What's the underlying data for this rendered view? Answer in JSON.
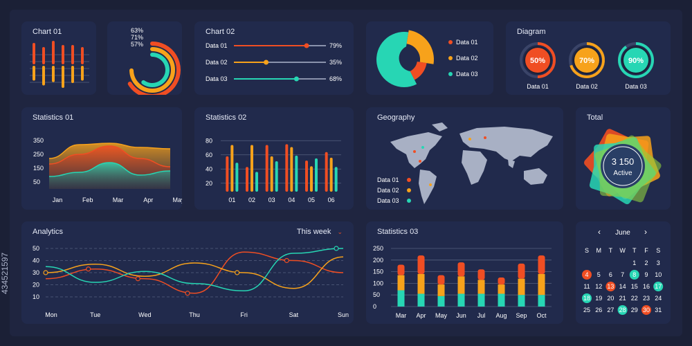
{
  "colors": {
    "red": "#f04e23",
    "orange": "#f7a21b",
    "teal": "#27d6b4",
    "grid": "#56607f",
    "text": "#c9cfe2",
    "white": "#ffffff"
  },
  "stock": {
    "side_text": "434521597"
  },
  "chart01": {
    "title": "Chart 01",
    "chart_data": {
      "type": "bar",
      "title": "Chart 01",
      "series": [
        {
          "name": "",
          "up": [
            45,
            35,
            50,
            40,
            40,
            35
          ],
          "down": [
            25,
            35,
            28,
            40,
            30,
            25
          ]
        }
      ]
    }
  },
  "rings": {
    "chart_data": {
      "type": "pie",
      "series": [
        {
          "label": "63%",
          "value": 63
        },
        {
          "label": "71%",
          "value": 71
        },
        {
          "label": "57%",
          "value": 57
        }
      ]
    }
  },
  "chart02": {
    "title": "Chart 02",
    "items": [
      {
        "label": "Data 01",
        "value": 79,
        "value_label": "79%"
      },
      {
        "label": "Data 02",
        "value": 35,
        "value_label": "35%"
      },
      {
        "label": "Data 03",
        "value": 68,
        "value_label": "68%"
      }
    ]
  },
  "donut": {
    "legend": [
      "Data 01",
      "Data 02",
      "Data 03"
    ],
    "chart_data": {
      "type": "pie",
      "categories": [
        "Data 01",
        "Data 02",
        "Data 03"
      ],
      "values": [
        30,
        20,
        50
      ]
    }
  },
  "diagram": {
    "title": "Diagram",
    "items": [
      {
        "value": 50,
        "label": "50%",
        "name": "Data 01"
      },
      {
        "value": 70,
        "label": "70%",
        "name": "Data 02"
      },
      {
        "value": 90,
        "label": "90%",
        "name": "Data 03"
      }
    ]
  },
  "stat01": {
    "title": "Statistics 01",
    "chart_data": {
      "type": "area",
      "categories": [
        "Jan",
        "Feb",
        "Mar",
        "Apr",
        "May"
      ],
      "yticks": [
        "350",
        "250",
        "150",
        "50"
      ],
      "ylim": [
        0,
        400
      ],
      "series": [
        {
          "name": "",
          "values": [
            220,
            320,
            330,
            300,
            290
          ]
        },
        {
          "name": "",
          "values": [
            180,
            250,
            310,
            220,
            160
          ]
        },
        {
          "name": "",
          "values": [
            90,
            120,
            190,
            100,
            130
          ]
        }
      ]
    }
  },
  "stat02": {
    "title": "Statistics 02",
    "chart_data": {
      "type": "bar",
      "categories": [
        "01",
        "02",
        "03",
        "04",
        "05",
        "06"
      ],
      "yticks": [
        "80",
        "60",
        "40",
        "20"
      ],
      "ylim": [
        10,
        90
      ],
      "series": [
        {
          "name": "",
          "values": [
            56,
            41,
            72,
            73,
            50,
            62
          ]
        },
        {
          "name": "",
          "values": [
            72,
            72,
            56,
            69,
            42,
            54
          ]
        },
        {
          "name": "",
          "values": [
            47,
            34,
            49,
            57,
            53,
            41
          ]
        }
      ]
    }
  },
  "geo": {
    "title": "Geography",
    "legend": [
      "Data 01",
      "Data 02",
      "Data 03"
    ]
  },
  "total": {
    "title": "Total",
    "value": "3 150",
    "label": "Active"
  },
  "analytics": {
    "title": "Analytics",
    "filter": "This week",
    "chart_data": {
      "type": "line",
      "categories": [
        "Mon",
        "Tue",
        "Wed",
        "Thu",
        "Fri",
        "Sat",
        "Sun"
      ],
      "yticks": [
        "50",
        "40",
        "30",
        "20",
        "10"
      ],
      "ylim": [
        10,
        50
      ],
      "series": [
        {
          "name": "",
          "values": [
            25,
            33,
            25,
            13,
            47,
            40,
            30
          ]
        },
        {
          "name": "",
          "values": [
            30,
            37,
            27,
            38,
            30,
            17,
            43
          ]
        },
        {
          "name": "",
          "values": [
            35,
            22,
            31,
            21,
            15,
            46,
            50
          ]
        }
      ]
    }
  },
  "stat03": {
    "title": "Statistics 03",
    "chart_data": {
      "type": "bar",
      "categories": [
        "Mar",
        "Apr",
        "May",
        "Jun",
        "Jul",
        "Aug",
        "Sep",
        "Oct"
      ],
      "yticks": [
        "250",
        "200",
        "150",
        "100",
        "50",
        "0"
      ],
      "ylim": [
        0,
        250
      ],
      "series": [
        {
          "name": "",
          "values": [
            45,
            80,
            40,
            60,
            45,
            30,
            65,
            80
          ]
        },
        {
          "name": "",
          "values": [
            65,
            85,
            50,
            75,
            60,
            40,
            70,
            90
          ]
        },
        {
          "name": "",
          "values": [
            70,
            55,
            45,
            55,
            55,
            55,
            50,
            50
          ]
        }
      ]
    }
  },
  "calendar": {
    "month": "June",
    "prev": "‹",
    "next": "›",
    "weekdays": [
      "S",
      "M",
      "T",
      "W",
      "T",
      "F",
      "S"
    ],
    "days": [
      "1",
      "2",
      "3",
      "4",
      "5",
      "6",
      "7",
      "8",
      "9",
      "10",
      "11",
      "12",
      "13",
      "14",
      "15",
      "16",
      "17",
      "18",
      "19",
      "20",
      "21",
      "22",
      "23",
      "24",
      "25",
      "26",
      "27",
      "28",
      "29",
      "30",
      "31"
    ],
    "first_offset": 4,
    "highlights": {
      "4": "red",
      "8": "teal",
      "13": "red",
      "17": "teal",
      "18": "teal",
      "28": "teal",
      "30": "red"
    }
  }
}
